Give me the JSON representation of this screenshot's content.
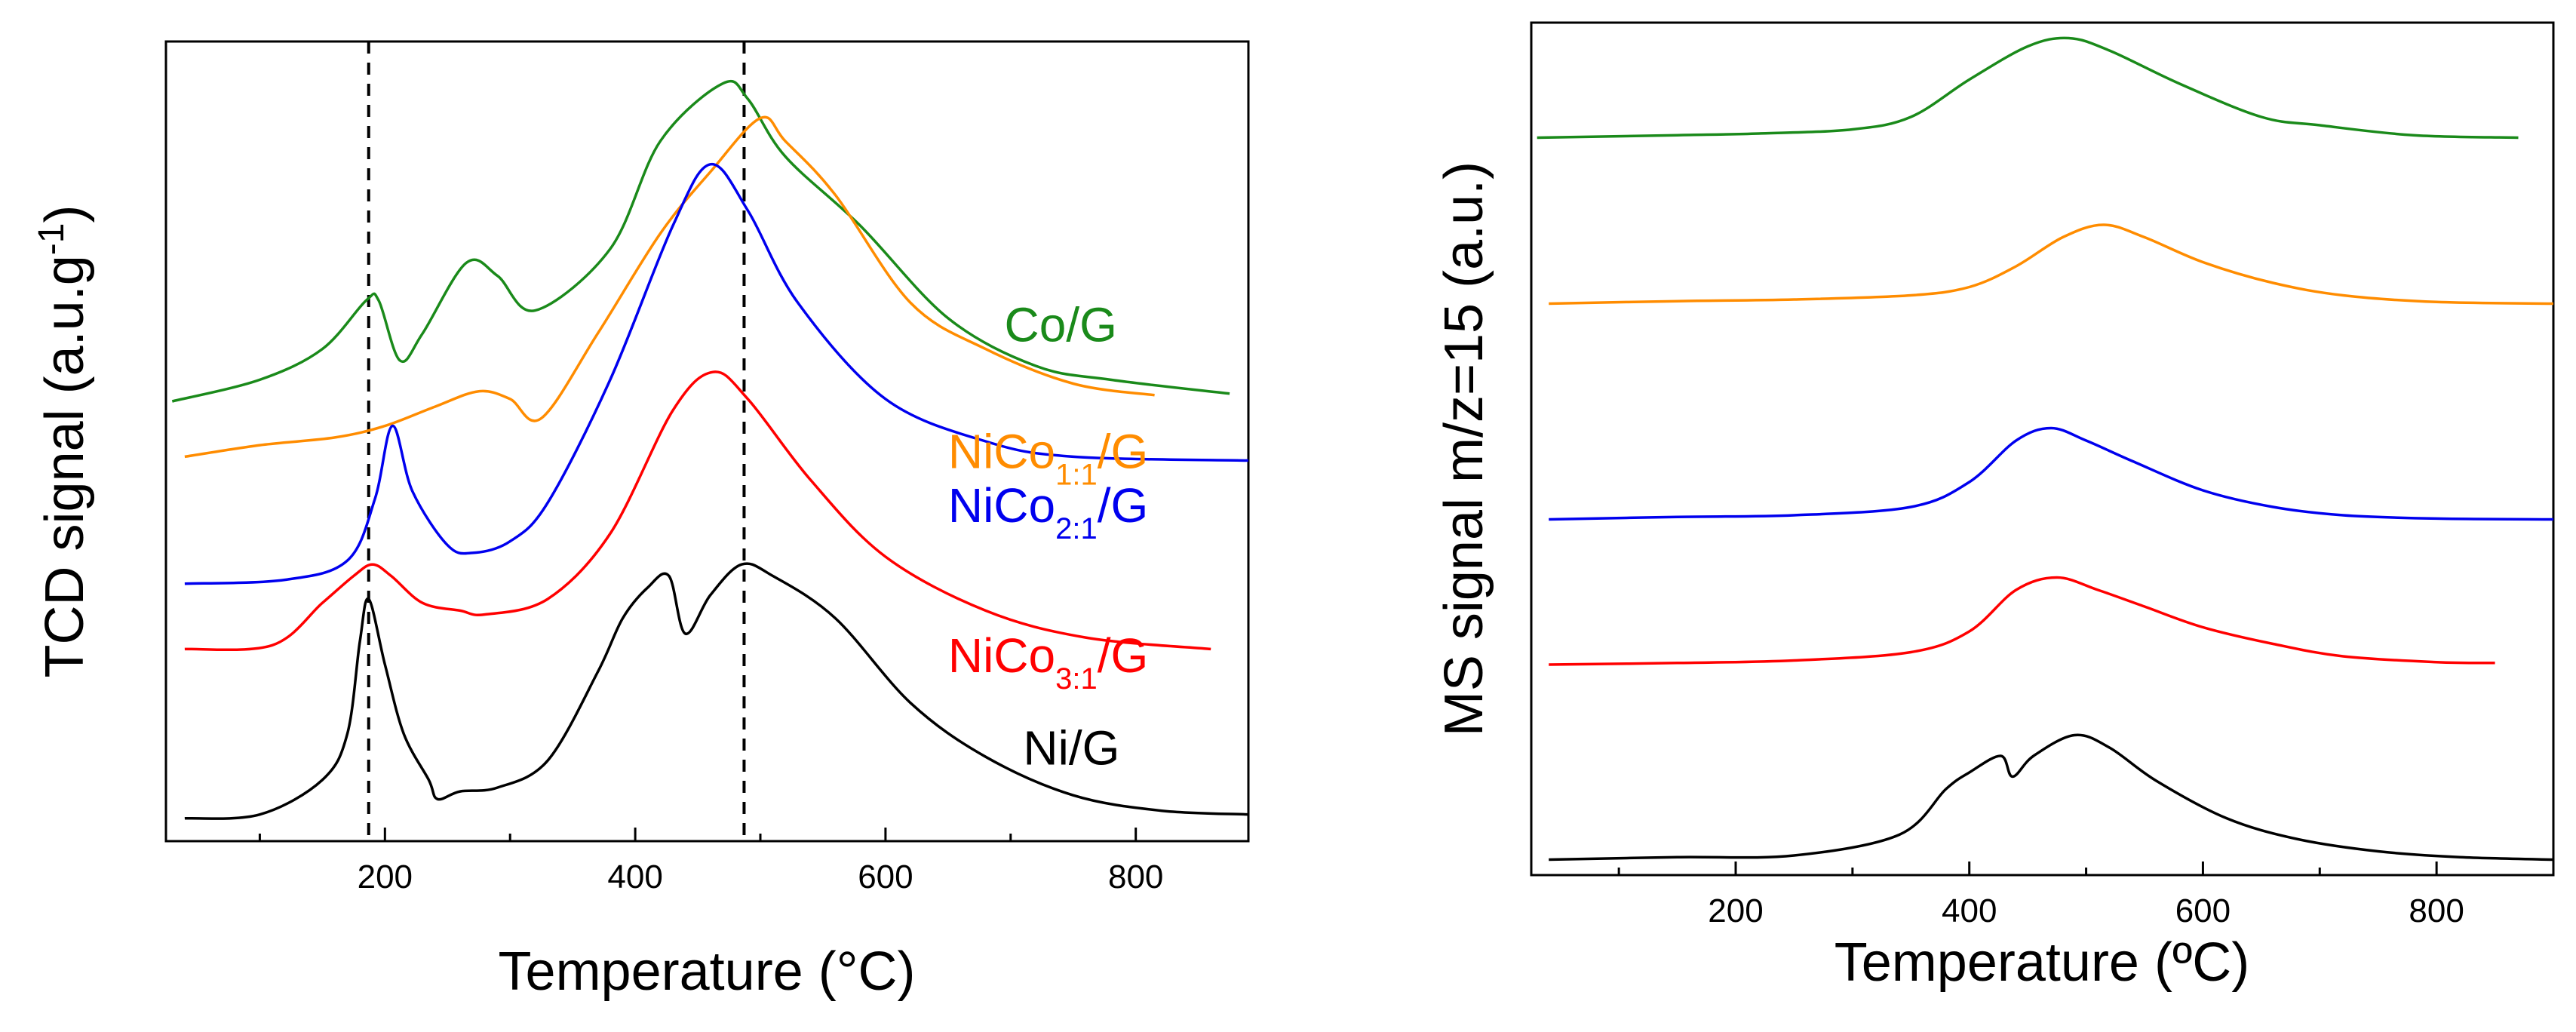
{
  "chart_data": [
    {
      "type": "line",
      "panel": "left",
      "xlabel": "Temperature (°C)",
      "ylabel": "TCD signal (a.u.g",
      "ylabel_sup": "-1",
      "ylabel_close": ")",
      "xlim": [
        25,
        890
      ],
      "ylim": [
        0,
        10
      ],
      "x_ticks": [
        200,
        400,
        600,
        800
      ],
      "x_minor_ticks": [
        100,
        300,
        500,
        700
      ],
      "vlines": [
        187,
        487
      ],
      "series": [
        {
          "name": "Co/G",
          "label_main": "Co/G",
          "label_sub": "",
          "label_tail": "",
          "color": "#1a8a1a",
          "legend_pos": [
            695,
            6.3
          ],
          "x": [
            30,
            100,
            150,
            185,
            195,
            212,
            230,
            265,
            290,
            320,
            380,
            420,
            470,
            490,
            520,
            580,
            650,
            720,
            780,
            875
          ],
          "y": [
            5.52,
            5.8,
            6.2,
            6.83,
            6.83,
            6.05,
            6.4,
            7.32,
            7.15,
            6.7,
            7.5,
            8.9,
            9.65,
            9.45,
            8.7,
            7.8,
            6.6,
            5.98,
            5.8,
            5.62
          ]
        },
        {
          "name": "NiCo1:1/G",
          "label_main": "NiCo",
          "label_sub": "1:1",
          "label_tail": "/G",
          "color": "#ff8c00",
          "legend_pos": [
            650,
            4.65
          ],
          "x": [
            40,
            100,
            160,
            200,
            240,
            275,
            300,
            325,
            370,
            420,
            460,
            500,
            520,
            560,
            620,
            680,
            750,
            815
          ],
          "y": [
            4.8,
            4.95,
            5.05,
            5.2,
            5.45,
            5.65,
            5.55,
            5.3,
            6.4,
            7.7,
            8.5,
            9.2,
            8.9,
            8.2,
            6.8,
            6.2,
            5.75,
            5.6
          ]
        },
        {
          "name": "NiCo2:1/G",
          "label_main": "NiCo",
          "label_sub": "2:1",
          "label_tail": "/G",
          "color": "#0000ee",
          "legend_pos": [
            650,
            3.95
          ],
          "x": [
            40,
            120,
            170,
            192,
            206,
            222,
            250,
            270,
            300,
            330,
            380,
            430,
            460,
            490,
            530,
            600,
            680,
            750,
            890
          ],
          "y": [
            3.15,
            3.2,
            3.45,
            4.25,
            5.2,
            4.35,
            3.65,
            3.55,
            3.7,
            4.2,
            5.8,
            7.8,
            8.6,
            8.0,
            6.8,
            5.55,
            5.0,
            4.8,
            4.75
          ]
        },
        {
          "name": "NiCo3:1/G",
          "label_main": "NiCo",
          "label_sub": "3:1",
          "label_tail": "/G",
          "color": "#ff0000",
          "legend_pos": [
            650,
            2.0
          ],
          "x": [
            40,
            110,
            150,
            175,
            190,
            205,
            230,
            260,
            280,
            330,
            380,
            430,
            462,
            490,
            540,
            600,
            680,
            760,
            860
          ],
          "y": [
            2.3,
            2.35,
            2.9,
            3.25,
            3.4,
            3.25,
            2.9,
            2.8,
            2.75,
            2.95,
            3.8,
            5.4,
            5.9,
            5.55,
            4.5,
            3.5,
            2.8,
            2.45,
            2.3
          ]
        },
        {
          "name": "Ni/G",
          "label_main": "Ni/G",
          "label_sub": "",
          "label_tail": "",
          "color": "#000000",
          "legend_pos": [
            710,
            0.8
          ],
          "x": [
            40,
            100,
            150,
            170,
            180,
            187,
            200,
            215,
            235,
            242,
            260,
            290,
            330,
            370,
            390,
            410,
            427,
            440,
            460,
            485,
            510,
            560,
            620,
            680,
            750,
            820,
            890
          ],
          "y": [
            0.1,
            0.15,
            0.6,
            1.2,
            2.4,
            2.95,
            2.1,
            1.2,
            0.6,
            0.35,
            0.45,
            0.5,
            0.85,
            2.0,
            2.7,
            3.1,
            3.25,
            2.5,
            3.0,
            3.4,
            3.25,
            2.7,
            1.6,
            0.9,
            0.4,
            0.2,
            0.15
          ]
        }
      ]
    },
    {
      "type": "line",
      "panel": "right",
      "xlabel": "Temperature (ºC)",
      "ylabel": "MS signal m/z=15 (a.u.)",
      "xlim": [
        25,
        900
      ],
      "ylim": [
        0,
        10
      ],
      "x_ticks": [
        200,
        400,
        600,
        800
      ],
      "x_minor_ticks": [
        100,
        300,
        500,
        700
      ],
      "series": [
        {
          "name": "Co/G",
          "color": "#1a8a1a",
          "x": [
            30,
            150,
            220,
            300,
            350,
            400,
            450,
            485,
            520,
            580,
            650,
            700,
            780,
            870
          ],
          "y": [
            8.75,
            8.78,
            8.8,
            8.85,
            9.0,
            9.45,
            9.85,
            9.95,
            9.8,
            9.4,
            9.0,
            8.9,
            8.78,
            8.75
          ]
        },
        {
          "name": "NiCo1:1/G",
          "color": "#ff8c00",
          "x": [
            40,
            150,
            250,
            350,
            400,
            440,
            480,
            515,
            550,
            600,
            660,
            720,
            800,
            900
          ],
          "y": [
            6.75,
            6.78,
            6.8,
            6.85,
            6.95,
            7.2,
            7.55,
            7.7,
            7.55,
            7.25,
            7.0,
            6.85,
            6.77,
            6.75
          ]
        },
        {
          "name": "NiCo2:1/G",
          "color": "#0000ee",
          "x": [
            40,
            150,
            250,
            350,
            400,
            440,
            470,
            500,
            540,
            600,
            660,
            720,
            800,
            900
          ],
          "y": [
            4.15,
            4.18,
            4.2,
            4.3,
            4.6,
            5.1,
            5.25,
            5.1,
            4.85,
            4.5,
            4.3,
            4.2,
            4.16,
            4.15
          ]
        },
        {
          "name": "NiCo3:1/G",
          "color": "#ff0000",
          "x": [
            40,
            150,
            250,
            350,
            400,
            440,
            475,
            510,
            550,
            600,
            660,
            720,
            800,
            850
          ],
          "y": [
            2.4,
            2.42,
            2.45,
            2.55,
            2.8,
            3.3,
            3.45,
            3.3,
            3.1,
            2.85,
            2.65,
            2.5,
            2.43,
            2.42
          ]
        },
        {
          "name": "Ni/G",
          "color": "#000000",
          "x": [
            40,
            150,
            250,
            340,
            380,
            400,
            427,
            437,
            455,
            490,
            520,
            560,
            620,
            680,
            750,
            820,
            900
          ],
          "y": [
            0.05,
            0.08,
            0.1,
            0.35,
            0.9,
            1.1,
            1.3,
            1.05,
            1.3,
            1.55,
            1.4,
            1.0,
            0.55,
            0.3,
            0.15,
            0.08,
            0.05
          ]
        }
      ]
    }
  ]
}
